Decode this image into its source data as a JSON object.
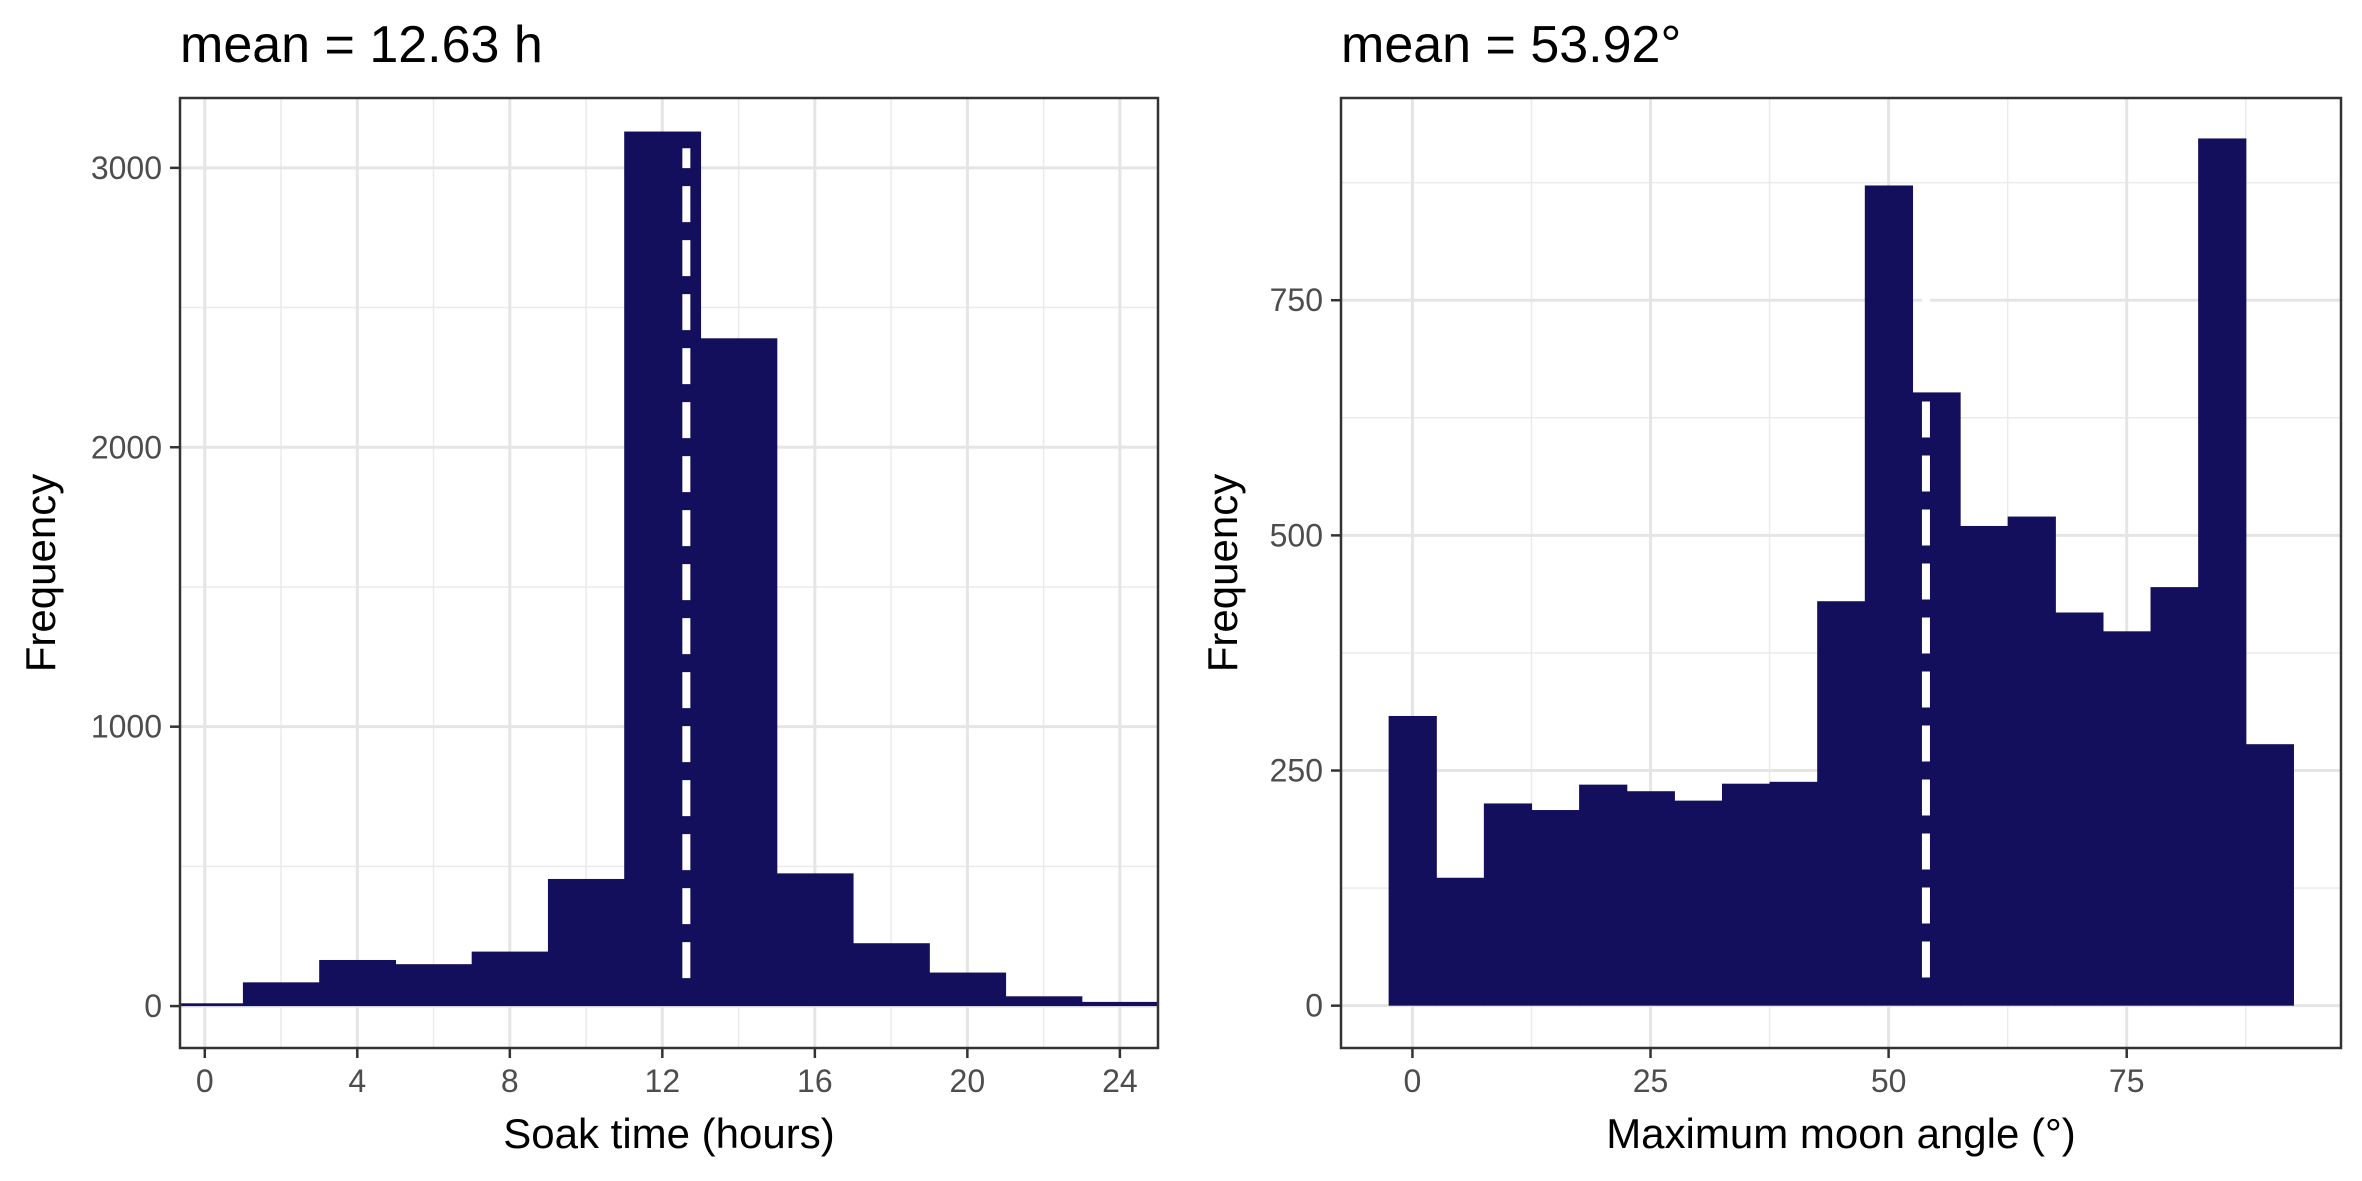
{
  "chart_data": [
    {
      "type": "bar",
      "subtype": "histogram",
      "title": "mean = 12.63 h",
      "xlabel": "Soak time (hours)",
      "ylabel": "Frequency",
      "xlim": [
        -0.65,
        25
      ],
      "ylim": [
        -150,
        3250
      ],
      "x_ticks": [
        0,
        4,
        8,
        12,
        16,
        20,
        24
      ],
      "y_ticks": [
        0,
        1000,
        2000,
        3000
      ],
      "bin_width": 2,
      "bins": [
        {
          "x0": -1,
          "x1": 1,
          "count": 10
        },
        {
          "x0": 1,
          "x1": 3,
          "count": 85
        },
        {
          "x0": 3,
          "x1": 5,
          "count": 165
        },
        {
          "x0": 5,
          "x1": 7,
          "count": 150
        },
        {
          "x0": 7,
          "x1": 9,
          "count": 195
        },
        {
          "x0": 9,
          "x1": 11,
          "count": 455
        },
        {
          "x0": 11,
          "x1": 13,
          "count": 3130
        },
        {
          "x0": 13,
          "x1": 15,
          "count": 2390
        },
        {
          "x0": 15,
          "x1": 17,
          "count": 475
        },
        {
          "x0": 17,
          "x1": 19,
          "count": 225
        },
        {
          "x0": 19,
          "x1": 21,
          "count": 120
        },
        {
          "x0": 21,
          "x1": 23,
          "count": 35
        },
        {
          "x0": 23,
          "x1": 25,
          "count": 15
        }
      ],
      "mean_line": {
        "x": 12.63,
        "y_from": 100,
        "y_to": 3070
      },
      "grid": true,
      "colors": {
        "bar": "#140f5c",
        "mean_line": "#ffffff"
      }
    },
    {
      "type": "bar",
      "subtype": "histogram",
      "title": "mean = 53.92°",
      "xlabel": "Maximum moon angle (°)",
      "ylabel": "Frequency",
      "xlim": [
        -7.5,
        97.5
      ],
      "ylim": [
        -45,
        965
      ],
      "x_ticks": [
        0,
        25,
        50,
        75
      ],
      "y_ticks": [
        0,
        250,
        500,
        750
      ],
      "bin_width": 5,
      "bins": [
        {
          "x0": -2.5,
          "x1": 2.5,
          "count": 308
        },
        {
          "x0": 2.5,
          "x1": 7.5,
          "count": 136
        },
        {
          "x0": 7.5,
          "x1": 12.5,
          "count": 215
        },
        {
          "x0": 12.5,
          "x1": 17.5,
          "count": 208
        },
        {
          "x0": 17.5,
          "x1": 22.5,
          "count": 235
        },
        {
          "x0": 22.5,
          "x1": 27.5,
          "count": 228
        },
        {
          "x0": 27.5,
          "x1": 32.5,
          "count": 218
        },
        {
          "x0": 32.5,
          "x1": 37.5,
          "count": 236
        },
        {
          "x0": 37.5,
          "x1": 42.5,
          "count": 238
        },
        {
          "x0": 42.5,
          "x1": 47.5,
          "count": 430
        },
        {
          "x0": 47.5,
          "x1": 52.5,
          "count": 872
        },
        {
          "x0": 52.5,
          "x1": 57.5,
          "count": 652
        },
        {
          "x0": 57.5,
          "x1": 62.5,
          "count": 510
        },
        {
          "x0": 62.5,
          "x1": 67.5,
          "count": 520
        },
        {
          "x0": 67.5,
          "x1": 72.5,
          "count": 418
        },
        {
          "x0": 72.5,
          "x1": 77.5,
          "count": 398
        },
        {
          "x0": 77.5,
          "x1": 82.5,
          "count": 445
        },
        {
          "x0": 82.5,
          "x1": 87.5,
          "count": 922
        },
        {
          "x0": 87.5,
          "x1": 92.5,
          "count": 278
        }
      ],
      "mean_line": {
        "x": 53.92,
        "y_from": 30,
        "y_to": 870
      },
      "grid": true,
      "colors": {
        "bar": "#140f5c",
        "mean_line": "#ffffff"
      }
    }
  ]
}
